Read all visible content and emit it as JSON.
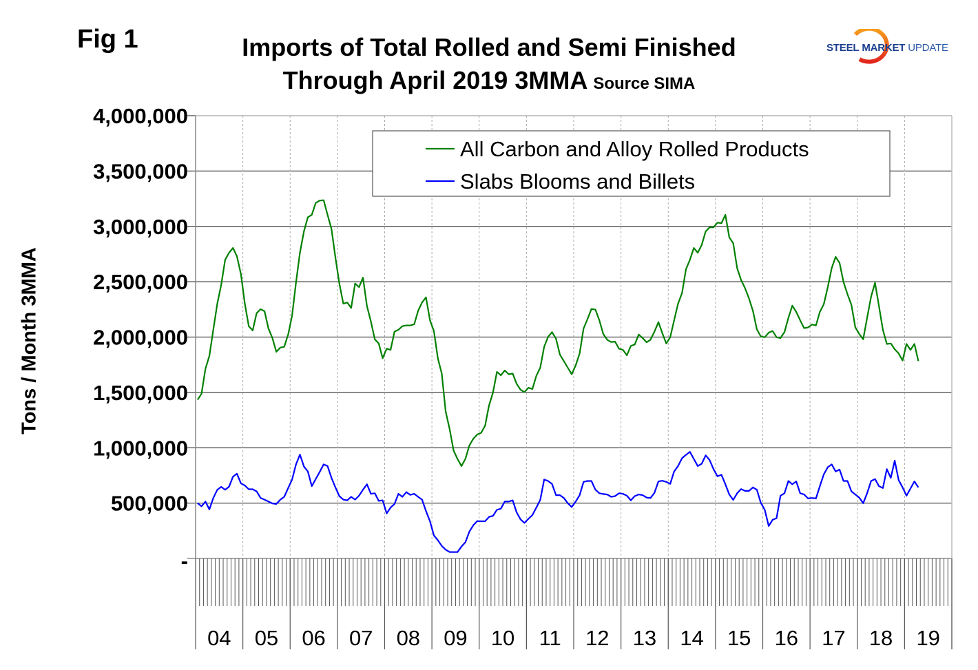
{
  "figure_label": "Fig 1",
  "logo": {
    "part1": "STEEL",
    "part2": "MARKET",
    "part3": "UPDATE"
  },
  "chart_data": {
    "type": "line",
    "title_line1": "Imports of Total Rolled and Semi Finished",
    "title_line2": "Through April 2019 3MMA",
    "source": "Source SIMA",
    "xlabel": "",
    "ylabel": "Tons / Month 3MMA",
    "ylim": [
      0,
      4000000
    ],
    "yticks": [
      0,
      500000,
      1000000,
      1500000,
      2000000,
      2500000,
      3000000,
      3500000,
      4000000
    ],
    "ytick_labels": [
      "-",
      "500,000",
      "1,000,000",
      "1,500,000",
      "2,000,000",
      "2,500,000",
      "3,000,000",
      "3,500,000",
      "4,000,000"
    ],
    "x_start": "2004-01",
    "x_end": "2019-04",
    "x_frequency": "monthly",
    "year_labels": [
      "04",
      "05",
      "06",
      "07",
      "08",
      "09",
      "10",
      "11",
      "12",
      "13",
      "14",
      "15",
      "16",
      "17",
      "18",
      "19"
    ],
    "grid": "horizontal solid, vertical dotted per year",
    "legend_position": "top-right",
    "series": [
      {
        "name": "All Carbon and Alloy Rolled Products",
        "color": "#008000",
        "values": [
          1434000,
          1488000,
          1713000,
          1830000,
          2066000,
          2302000,
          2473000,
          2698000,
          2762000,
          2805000,
          2730000,
          2569000,
          2302000,
          2098000,
          2060000,
          2216000,
          2252000,
          2233000,
          2077000,
          1991000,
          1867000,
          1905000,
          1912000,
          2023000,
          2194000,
          2494000,
          2762000,
          2955000,
          3083000,
          3104000,
          3212000,
          3233000,
          3237000,
          3104000,
          2976000,
          2719000,
          2484000,
          2302000,
          2312000,
          2263000,
          2484000,
          2451000,
          2537000,
          2280000,
          2141000,
          1980000,
          1942000,
          1809000,
          1895000,
          1884000,
          2049000,
          2066000,
          2098000,
          2105000,
          2105000,
          2115000,
          2237000,
          2312000,
          2359000,
          2152000,
          2055000,
          1809000,
          1670000,
          1327000,
          1167000,
          974000,
          899000,
          835000,
          899000,
          1021000,
          1081000,
          1120000,
          1135000,
          1199000,
          1381000,
          1499000,
          1685000,
          1655000,
          1698000,
          1664000,
          1670000,
          1578000,
          1524000,
          1503000,
          1542000,
          1531000,
          1649000,
          1723000,
          1912000,
          2002000,
          2045000,
          1985000,
          1841000,
          1783000,
          1723000,
          1664000,
          1745000,
          1852000,
          2077000,
          2162000,
          2254000,
          2248000,
          2152000,
          2028000,
          1976000,
          1955000,
          1959000,
          1895000,
          1884000,
          1835000,
          1920000,
          1933000,
          2023000,
          1991000,
          1953000,
          1976000,
          2049000,
          2135000,
          2034000,
          1942000,
          1998000,
          2152000,
          2302000,
          2398000,
          2612000,
          2698000,
          2805000,
          2762000,
          2833000,
          2955000,
          2991000,
          2991000,
          3034000,
          3029000,
          3104000,
          2901000,
          2848000,
          2623000,
          2516000,
          2441000,
          2349000,
          2237000,
          2070000,
          2006000,
          1998000,
          2040000,
          2055000,
          1998000,
          1991000,
          2045000,
          2173000,
          2284000,
          2227000,
          2152000,
          2081000,
          2087000,
          2113000,
          2105000,
          2227000,
          2297000,
          2451000,
          2623000,
          2725000,
          2670000,
          2498000,
          2387000,
          2291000,
          2087000,
          2028000,
          1980000,
          2173000,
          2366000,
          2490000,
          2280000,
          2066000,
          1938000,
          1942000,
          1890000,
          1852000,
          1788000,
          1938000,
          1884000,
          1938000,
          1783000
        ]
      },
      {
        "name": "Slabs Blooms and Billets",
        "color": "#0000ff",
        "values": [
          499000,
          471000,
          514000,
          443000,
          546000,
          621000,
          647000,
          621000,
          649000,
          739000,
          766000,
          679000,
          659000,
          625000,
          625000,
          606000,
          546000,
          531000,
          514000,
          497000,
          492000,
          531000,
          557000,
          636000,
          713000,
          850000,
          938000,
          831000,
          786000,
          653000,
          717000,
          781000,
          850000,
          835000,
          728000,
          642000,
          563000,
          531000,
          525000,
          557000,
          531000,
          567000,
          621000,
          670000,
          584000,
          589000,
          520000,
          525000,
          407000,
          460000,
          492000,
          584000,
          557000,
          599000,
          574000,
          584000,
          557000,
          531000,
          428000,
          336000,
          208000,
          165000,
          113000,
          79000,
          58000,
          58000,
          58000,
          107000,
          146000,
          242000,
          300000,
          338000,
          336000,
          336000,
          375000,
          385000,
          439000,
          450000,
          514000,
          514000,
          525000,
          417000,
          353000,
          321000,
          358000,
          392000,
          460000,
          529000,
          713000,
          700000,
          674000,
          572000,
          572000,
          546000,
          499000,
          465000,
          514000,
          572000,
          692000,
          700000,
          700000,
          621000,
          589000,
          582000,
          578000,
          557000,
          563000,
          589000,
          584000,
          567000,
          525000,
          563000,
          578000,
          572000,
          550000,
          546000,
          593000,
          696000,
          702000,
          692000,
          674000,
          786000,
          835000,
          906000,
          936000,
          963000,
          899000,
          835000,
          856000,
          931000,
          889000,
          807000,
          743000,
          756000,
          670000,
          578000,
          529000,
          589000,
          627000,
          610000,
          610000,
          642000,
          621000,
          503000,
          439000,
          293000,
          349000,
          364000,
          567000,
          589000,
          700000,
          670000,
          696000,
          589000,
          578000,
          542000,
          546000,
          542000,
          653000,
          760000,
          824000,
          850000,
          786000,
          803000,
          700000,
          700000,
          606000,
          578000,
          550000,
          499000,
          589000,
          700000,
          717000,
          653000,
          636000,
          807000,
          728000,
          884000,
          707000,
          642000,
          567000,
          632000,
          696000,
          642000
        ]
      }
    ]
  }
}
